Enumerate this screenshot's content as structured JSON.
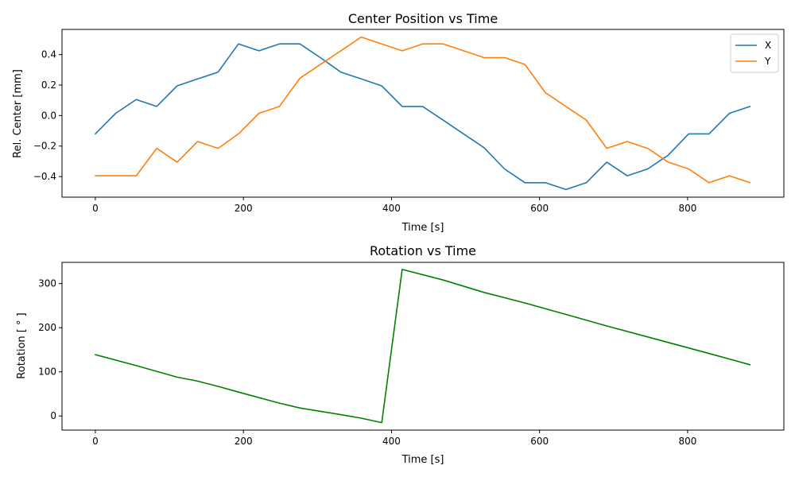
{
  "chart_data": [
    {
      "type": "line",
      "title": "Center Position vs Time",
      "xlabel": "Time [s]",
      "ylabel": "Rel. Center [mm]",
      "xlim": [
        -45,
        930
      ],
      "ylim": [
        -0.535,
        0.565
      ],
      "xticks": [
        0,
        200,
        400,
        600,
        800
      ],
      "yticks": [
        -0.4,
        -0.2,
        0.0,
        0.2,
        0.4
      ],
      "xtick_labels": [
        "0",
        "200",
        "400",
        "600",
        "800"
      ],
      "ytick_labels": [
        "−0.4",
        "−0.2",
        "0.0",
        "0.2",
        "0.4"
      ],
      "grid": false,
      "legend": "top-right",
      "x": [
        0,
        27.6,
        55.3,
        82.9,
        110.5,
        138.2,
        165.8,
        193.4,
        221.1,
        248.7,
        276.3,
        304.0,
        331.6,
        359.2,
        386.9,
        414.5,
        442.1,
        469.8,
        497.4,
        525.0,
        552.7,
        580.3,
        607.9,
        635.6,
        663.2,
        690.8,
        718.5,
        746.1,
        773.7,
        801.4,
        829.0,
        856.6,
        884.3
      ],
      "series": [
        {
          "name": "X",
          "color": "#1f77b4",
          "values": [
            -0.12,
            0.015,
            0.105,
            0.06,
            0.195,
            0.24,
            0.285,
            0.47,
            0.425,
            0.47,
            0.47,
            0.38,
            0.285,
            0.24,
            0.195,
            0.06,
            0.06,
            -0.03,
            -0.12,
            -0.21,
            -0.35,
            -0.44,
            -0.44,
            -0.485,
            -0.44,
            -0.305,
            -0.395,
            -0.35,
            -0.26,
            -0.12,
            -0.12,
            0.015,
            0.06
          ]
        },
        {
          "name": "Y",
          "color": "#ff7f0e",
          "values": [
            -0.395,
            -0.395,
            -0.395,
            -0.215,
            -0.305,
            -0.17,
            -0.215,
            -0.12,
            0.015,
            0.06,
            0.245,
            0.335,
            0.425,
            0.515,
            0.47,
            0.425,
            0.47,
            0.47,
            0.425,
            0.38,
            0.38,
            0.335,
            0.15,
            0.06,
            -0.03,
            -0.215,
            -0.17,
            -0.215,
            -0.305,
            -0.35,
            -0.44,
            -0.395,
            -0.44
          ]
        }
      ]
    },
    {
      "type": "line",
      "title": "Rotation vs Time",
      "xlabel": "Time [s]",
      "ylabel": "Rotation [ ° ]",
      "xlim": [
        -45,
        930
      ],
      "ylim": [
        -32,
        348
      ],
      "xticks": [
        0,
        200,
        400,
        600,
        800
      ],
      "yticks": [
        0,
        100,
        200,
        300
      ],
      "xtick_labels": [
        "0",
        "200",
        "400",
        "600",
        "800"
      ],
      "ytick_labels": [
        "0",
        "100",
        "200",
        "300"
      ],
      "grid": false,
      "x": [
        0,
        55.3,
        110.5,
        138.2,
        165.8,
        193.4,
        248.7,
        276.3,
        331.6,
        359.2,
        386.9,
        414.5,
        469.8,
        525.0,
        580.3,
        635.6,
        690.8,
        746.1,
        801.4,
        856.6,
        884.3
      ],
      "series": [
        {
          "color": "#008000",
          "values": [
            139,
            114,
            88,
            79,
            67,
            54,
            29,
            18,
            3,
            -5,
            -15,
            332,
            308,
            280,
            256,
            230,
            204,
            179,
            154,
            129,
            116
          ]
        }
      ]
    }
  ]
}
